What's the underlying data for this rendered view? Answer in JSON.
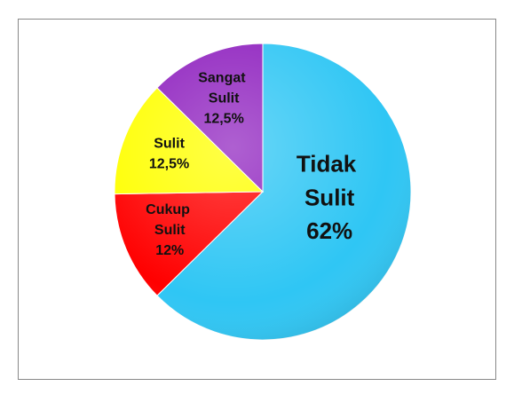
{
  "chart_data": {
    "type": "pie",
    "categories": [
      "Tidak Sulit",
      "Cukup Sulit",
      "Sulit",
      "Sangat Sulit"
    ],
    "values": [
      62,
      12,
      12.5,
      12.5
    ],
    "value_labels": [
      "62%",
      "12%",
      "12,5%",
      "12,5%"
    ],
    "colors": [
      "#2fc6f4",
      "#ff0000",
      "#ffff00",
      "#8f22bf"
    ]
  }
}
